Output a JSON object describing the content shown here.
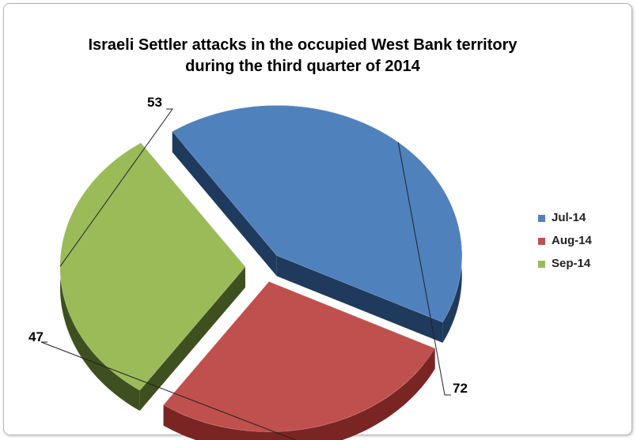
{
  "chart_data": {
    "type": "pie",
    "title": [
      "Israeli Settler attacks in the occupied West Bank territory",
      "during the third quarter of 2014"
    ],
    "categories": [
      "Jul-14",
      "Aug-14",
      "Sep-14"
    ],
    "values": [
      72,
      47,
      53
    ],
    "colors": [
      "#4f81bd",
      "#c0504d",
      "#9bbb59"
    ],
    "side_colors": [
      "#1f3a5c",
      "#7a2523",
      "#3f5020"
    ],
    "exploded": true,
    "three_d": true,
    "legend_position": "right",
    "data_labels": [
      "72",
      "47",
      "53"
    ]
  }
}
